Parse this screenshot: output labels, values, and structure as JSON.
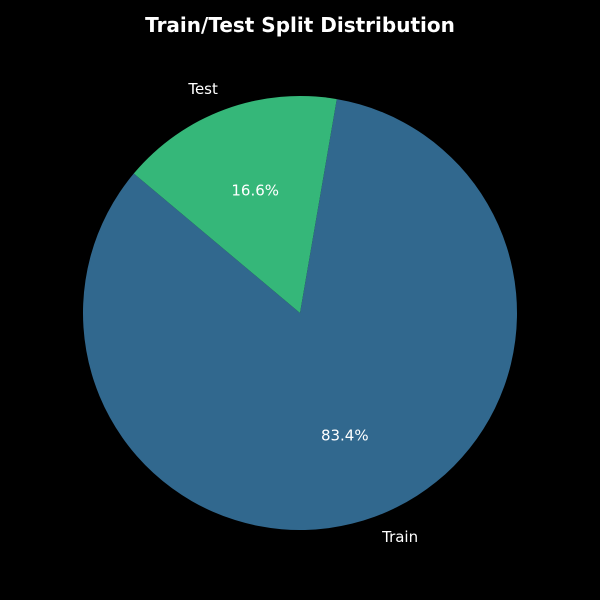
{
  "chart_data": {
    "type": "pie",
    "title": "Train/Test Split Distribution",
    "slices": [
      {
        "label": "Train",
        "value": 83.4,
        "pct_label": "83.4%",
        "color": "#31688e"
      },
      {
        "label": "Test",
        "value": 16.6,
        "pct_label": "16.6%",
        "color": "#35b779"
      }
    ],
    "start_angle_deg": 140,
    "direction": "counterclockwise",
    "background": "#000000",
    "text_color": "#ffffff"
  }
}
